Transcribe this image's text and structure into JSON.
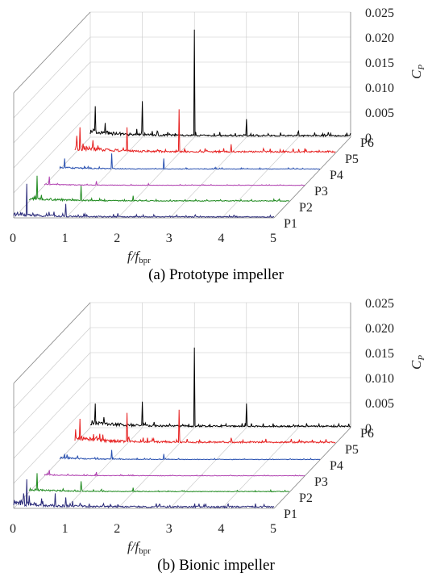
{
  "colors": {
    "P1": "#2b2b7a",
    "P2": "#1f8a1f",
    "P3": "#b040b0",
    "P4": "#2850b0",
    "P5": "#e61e1e",
    "P6": "#000000"
  },
  "chart_data": [
    {
      "type": "line",
      "caption": "(a) Prototype impeller",
      "xlabel_main": "f",
      "xlabel_den": "f",
      "xlabel_sub": "bpr",
      "zlabel": "C",
      "zlabel_sub": "P",
      "x_ticks": [
        "0",
        "1",
        "2",
        "3",
        "4",
        "5"
      ],
      "z_ticks": [
        "0",
        "0.005",
        "0.010",
        "0.015",
        "0.020",
        "0.025"
      ],
      "xlim": [
        0,
        5
      ],
      "zlim": [
        0,
        0.025
      ],
      "series": [
        {
          "name": "P1",
          "noise": 0.0012,
          "peaks": [
            [
              0.25,
              0.0068
            ],
            [
              1.0,
              0.0028
            ],
            [
              2.0,
              0.0009
            ],
            [
              3.0,
              0.0004
            ]
          ]
        },
        {
          "name": "P2",
          "noise": 0.001,
          "peaks": [
            [
              0.15,
              0.0052
            ],
            [
              1.0,
              0.0032
            ],
            [
              2.0,
              0.0012
            ],
            [
              3.0,
              0.0004
            ]
          ]
        },
        {
          "name": "P3",
          "noise": 0.0004,
          "peaks": [
            [
              0.1,
              0.0018
            ],
            [
              1.0,
              0.0009
            ],
            [
              2.0,
              0.0004
            ]
          ]
        },
        {
          "name": "P4",
          "noise": 0.0006,
          "peaks": [
            [
              0.1,
              0.0022
            ],
            [
              1.0,
              0.0032
            ],
            [
              2.0,
              0.0022
            ],
            [
              3.0,
              0.0004
            ]
          ]
        },
        {
          "name": "P5",
          "noise": 0.0018,
          "peaks": [
            [
              0.1,
              0.0052
            ],
            [
              1.0,
              0.0052
            ],
            [
              2.0,
              0.0088
            ],
            [
              3.0,
              0.0018
            ],
            [
              4.0,
              0.0006
            ]
          ]
        },
        {
          "name": "P6",
          "noise": 0.0018,
          "peaks": [
            [
              0.1,
              0.0062
            ],
            [
              1.0,
              0.0072
            ],
            [
              2.0,
              0.0215
            ],
            [
              3.0,
              0.0036
            ],
            [
              4.0,
              0.0012
            ],
            [
              5.0,
              0.0008
            ]
          ]
        }
      ]
    },
    {
      "type": "line",
      "caption": "(b) Bionic impeller",
      "xlabel_main": "f",
      "xlabel_den": "f",
      "xlabel_sub": "bpr",
      "zlabel": "C",
      "zlabel_sub": "P",
      "x_ticks": [
        "0",
        "1",
        "2",
        "3",
        "4",
        "5"
      ],
      "z_ticks": [
        "0",
        "0.005",
        "0.010",
        "0.015",
        "0.020",
        "0.025"
      ],
      "xlim": [
        0,
        5
      ],
      "zlim": [
        0,
        0.025
      ],
      "series": [
        {
          "name": "P1",
          "noise": 0.0018,
          "peaks": [
            [
              0.25,
              0.0058
            ],
            [
              0.8,
              0.003
            ],
            [
              1.0,
              0.0022
            ],
            [
              2.0,
              0.0008
            ],
            [
              3.0,
              0.0004
            ]
          ]
        },
        {
          "name": "P2",
          "noise": 0.0008,
          "peaks": [
            [
              0.15,
              0.0038
            ],
            [
              1.0,
              0.0022
            ],
            [
              2.0,
              0.0009
            ]
          ]
        },
        {
          "name": "P3",
          "noise": 0.0004,
          "peaks": [
            [
              0.1,
              0.0012
            ],
            [
              1.0,
              0.0008
            ]
          ]
        },
        {
          "name": "P4",
          "noise": 0.0006,
          "peaks": [
            [
              0.1,
              0.0012
            ],
            [
              1.0,
              0.002
            ],
            [
              2.0,
              0.0012
            ]
          ]
        },
        {
          "name": "P5",
          "noise": 0.0018,
          "peaks": [
            [
              0.1,
              0.005
            ],
            [
              1.0,
              0.0062
            ],
            [
              2.0,
              0.0068
            ],
            [
              3.0,
              0.0012
            ]
          ]
        },
        {
          "name": "P6",
          "noise": 0.0016,
          "peaks": [
            [
              0.1,
              0.0048
            ],
            [
              1.0,
              0.0052
            ],
            [
              2.0,
              0.016
            ],
            [
              3.0,
              0.0048
            ],
            [
              4.0,
              0.0005
            ]
          ]
        }
      ]
    }
  ]
}
